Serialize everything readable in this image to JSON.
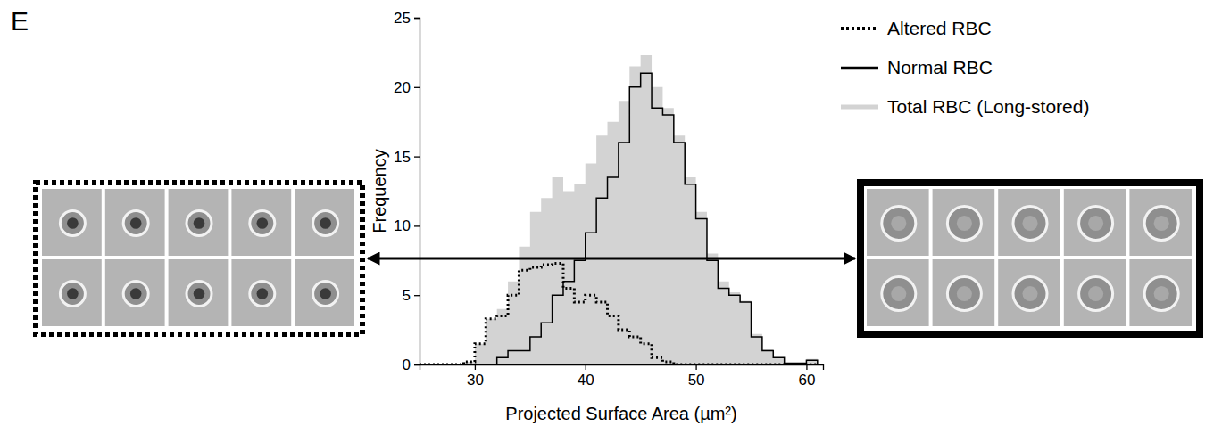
{
  "chart_data": {
    "type": "line",
    "panel_label": "E",
    "xlabel": "Projected Surface Area (µm²)",
    "ylabel": "Frequency",
    "x": [
      25,
      26,
      27,
      28,
      29,
      30,
      31,
      32,
      33,
      34,
      35,
      36,
      37,
      38,
      39,
      40,
      41,
      42,
      43,
      44,
      45,
      46,
      47,
      48,
      49,
      50,
      51,
      52,
      53,
      54,
      55,
      56,
      57,
      58,
      59,
      60,
      61
    ],
    "series": [
      {
        "name": "Altered RBC",
        "color": "#000000",
        "type": "line",
        "line_style": "dotted",
        "values": [
          0,
          0,
          0,
          0,
          0.2,
          1.5,
          3.3,
          3.5,
          5,
          6.8,
          7,
          7.2,
          7.3,
          5.5,
          4.5,
          5,
          4.5,
          3.5,
          2.5,
          2,
          1.5,
          0.5,
          0.2,
          0,
          0,
          0,
          0,
          0,
          0,
          0,
          0,
          0,
          0,
          0,
          0,
          0,
          0
        ]
      },
      {
        "name": "Normal RBC",
        "color": "#000000",
        "type": "line",
        "line_style": "solid",
        "values": [
          0,
          0,
          0,
          0,
          0,
          0,
          0,
          0.5,
          1,
          1,
          2,
          3,
          5,
          6,
          7.5,
          9.5,
          12,
          13.5,
          16,
          20,
          21,
          18.5,
          18,
          16,
          13,
          10.5,
          7.5,
          5.5,
          5,
          4.5,
          2,
          1,
          0.5,
          0.1,
          0.1,
          0.3,
          0
        ]
      },
      {
        "name": "Total RBC (Long-stored)",
        "color": "#d3d3d3",
        "type": "area",
        "line_style": "solid",
        "values": [
          0,
          0,
          0,
          0,
          0.2,
          1.5,
          3.3,
          4,
          6,
          8.5,
          11,
          12,
          13.5,
          12.5,
          13,
          14.5,
          16.5,
          17.5,
          19,
          21.5,
          22.3,
          20,
          18.5,
          16.5,
          13.5,
          11,
          8,
          6,
          5.2,
          4.6,
          2.2,
          1.1,
          0.5,
          0.1,
          0.1,
          0.4,
          0
        ]
      }
    ],
    "xlim": [
      25,
      61.5
    ],
    "ylim": [
      0,
      25
    ],
    "xticks": [
      30,
      40,
      50,
      60
    ],
    "yticks": [
      0,
      5,
      10,
      15,
      20,
      25
    ],
    "legend": "right"
  }
}
